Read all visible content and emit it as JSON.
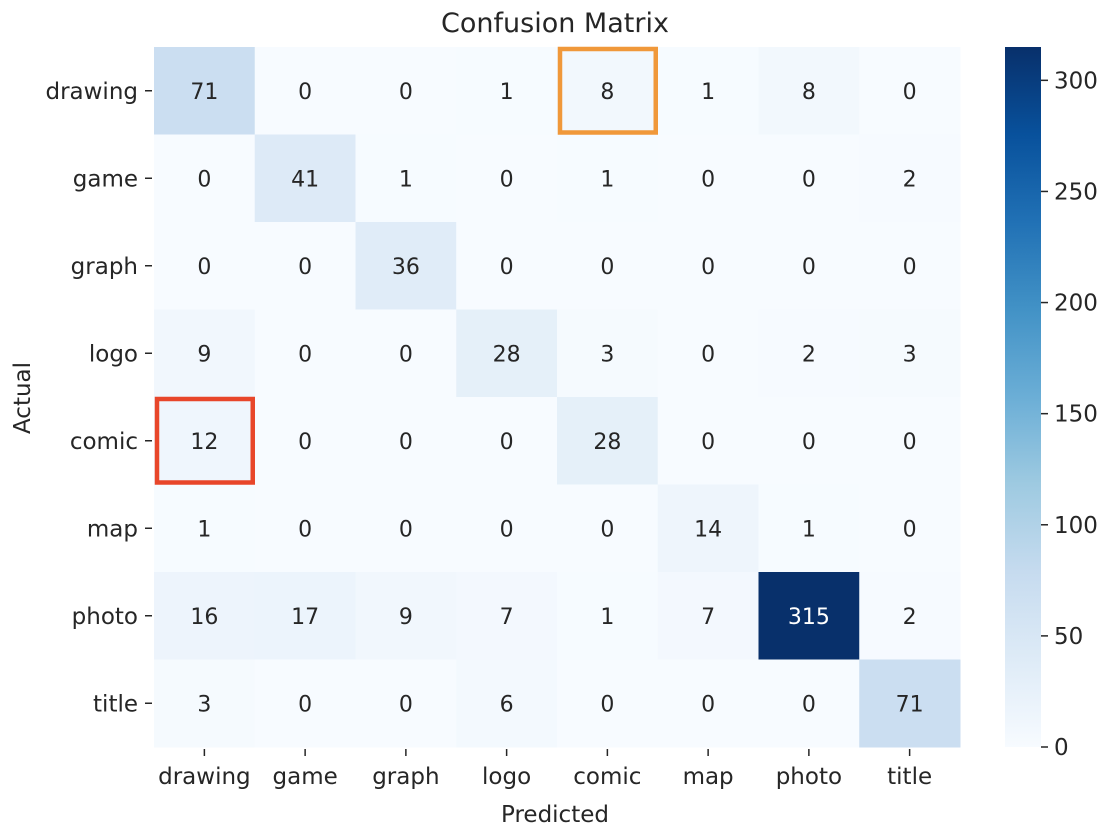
{
  "chart_data": {
    "type": "heatmap",
    "title": "Confusion Matrix",
    "xlabel": "Predicted",
    "ylabel": "Actual",
    "x_categories": [
      "drawing",
      "game",
      "graph",
      "logo",
      "comic",
      "map",
      "photo",
      "title"
    ],
    "y_categories": [
      "drawing",
      "game",
      "graph",
      "logo",
      "comic",
      "map",
      "photo",
      "title"
    ],
    "values": [
      [
        71,
        0,
        0,
        1,
        8,
        1,
        8,
        0
      ],
      [
        0,
        41,
        1,
        0,
        1,
        0,
        0,
        2
      ],
      [
        0,
        0,
        36,
        0,
        0,
        0,
        0,
        0
      ],
      [
        9,
        0,
        0,
        28,
        3,
        0,
        2,
        3
      ],
      [
        12,
        0,
        0,
        0,
        28,
        0,
        0,
        0
      ],
      [
        1,
        0,
        0,
        0,
        0,
        14,
        1,
        0
      ],
      [
        16,
        17,
        9,
        7,
        1,
        7,
        315,
        2
      ],
      [
        3,
        0,
        0,
        6,
        0,
        0,
        0,
        71
      ]
    ],
    "colormap": "Blues",
    "color_range": [
      0,
      315
    ],
    "colorbar_ticks": [
      0,
      50,
      100,
      150,
      200,
      250,
      300
    ],
    "highlights": [
      {
        "row": "drawing",
        "col": "comic",
        "color": "#f0983a"
      },
      {
        "row": "comic",
        "col": "drawing",
        "color": "#e8462a"
      }
    ]
  }
}
